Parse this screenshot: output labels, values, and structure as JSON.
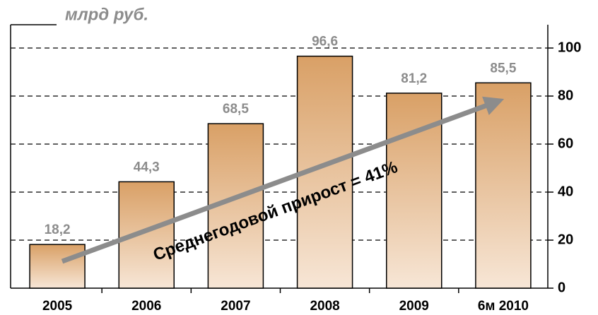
{
  "chart_data": {
    "type": "bar",
    "unit_label": "млрд руб.",
    "annotation": "Среднегодовой прирост = 41%",
    "categories": [
      "2005",
      "2006",
      "2007",
      "2008",
      "2009",
      "6м 2010"
    ],
    "values": [
      18.2,
      44.3,
      68.5,
      96.6,
      81.2,
      85.5
    ],
    "value_labels": [
      "18,2",
      "44,3",
      "68,5",
      "96,6",
      "81,2",
      "85,5"
    ],
    "color": "#d9a066",
    "ylim": [
      0,
      100
    ],
    "yticks": [
      0,
      20,
      40,
      60,
      80,
      100
    ],
    "grid": true,
    "y_axis_side": "right"
  }
}
